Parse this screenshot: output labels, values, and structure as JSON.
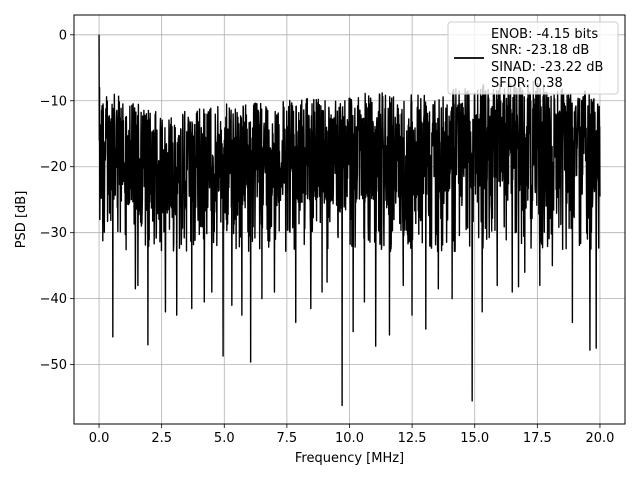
{
  "chart_data": {
    "type": "line",
    "title": "",
    "xlabel": "Frequency [MHz]",
    "ylabel": "PSD [dB]",
    "xlim": [
      -1.0,
      21.0
    ],
    "ylim": [
      -59.0,
      3.0
    ],
    "x_ticks": [
      0.0,
      2.5,
      5.0,
      7.5,
      10.0,
      12.5,
      15.0,
      17.5,
      20.0
    ],
    "x_tick_labels": [
      "0.0",
      "2.5",
      "5.0",
      "7.5",
      "10.0",
      "12.5",
      "15.0",
      "17.5",
      "20.0"
    ],
    "y_ticks": [
      0,
      -10,
      -20,
      -30,
      -40,
      -50
    ],
    "y_tick_labels": [
      "0",
      "−10",
      "−20",
      "−30",
      "−40",
      "−50"
    ],
    "grid": true,
    "legend_position": "top-right",
    "legend": [
      "ENOB: -4.15 bits",
      "SNR: -23.18 dB",
      "SINAD: -23.22 dB",
      "SFDR: 0.38"
    ],
    "series_color": "#000000",
    "series": [
      {
        "x_start": 0.0,
        "x_end": 20.0,
        "points": 2000,
        "peak": {
          "x": 0.0,
          "y": 0.0
        },
        "upper_envelope": [
          [
            0.0,
            -8.0
          ],
          [
            2.5,
            -12.0
          ],
          [
            5.0,
            -10.5
          ],
          [
            7.5,
            -10.0
          ],
          [
            10.0,
            -9.0
          ],
          [
            12.5,
            -8.5
          ],
          [
            15.0,
            -7.5
          ],
          [
            17.5,
            -7.0
          ],
          [
            20.0,
            -9.0
          ]
        ],
        "band_floor_typical": -30.0,
        "band_floor_deep": -36.0,
        "notable_dips": [
          [
            0.55,
            -45.8
          ],
          [
            1.45,
            -38.5
          ],
          [
            1.55,
            -38.0
          ],
          [
            1.95,
            -47.0
          ],
          [
            2.65,
            -42.0
          ],
          [
            3.1,
            -42.5
          ],
          [
            3.7,
            -41.5
          ],
          [
            4.2,
            -40.5
          ],
          [
            4.5,
            -39.0
          ],
          [
            4.95,
            -48.7
          ],
          [
            5.3,
            -41.0
          ],
          [
            5.7,
            -42.5
          ],
          [
            6.05,
            -49.6
          ],
          [
            6.5,
            -40.0
          ],
          [
            7.0,
            -39.0
          ],
          [
            7.85,
            -43.6
          ],
          [
            8.45,
            -41.5
          ],
          [
            8.9,
            -39.0
          ],
          [
            9.1,
            -37.5
          ],
          [
            9.7,
            -56.2
          ],
          [
            10.15,
            -45.0
          ],
          [
            10.6,
            -40.5
          ],
          [
            11.05,
            -47.2
          ],
          [
            11.6,
            -45.5
          ],
          [
            12.15,
            -38.0
          ],
          [
            12.5,
            -42.5
          ],
          [
            13.05,
            -44.6
          ],
          [
            13.55,
            -38.5
          ],
          [
            14.1,
            -40.0
          ],
          [
            14.9,
            -55.5
          ],
          [
            15.3,
            -42.0
          ],
          [
            15.9,
            -38.0
          ],
          [
            16.5,
            -39.0
          ],
          [
            16.75,
            -38.2
          ],
          [
            17.0,
            -36.0
          ],
          [
            17.6,
            -38.0
          ],
          [
            18.1,
            -35.0
          ],
          [
            18.9,
            -43.6
          ],
          [
            19.6,
            -47.8
          ],
          [
            19.85,
            -47.5
          ]
        ]
      }
    ]
  }
}
